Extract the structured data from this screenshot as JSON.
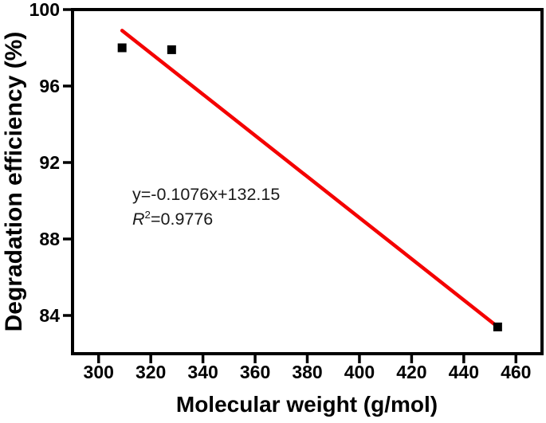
{
  "figure": {
    "background": "#ffffff"
  },
  "chart_data": {
    "type": "scatter",
    "title": "",
    "xlabel": "Molecular weight (g/mol)",
    "ylabel": "Degradation efficiency (%)",
    "xlim": [
      290,
      470
    ],
    "ylim": [
      82,
      100
    ],
    "x_ticks": [
      300,
      320,
      340,
      360,
      380,
      400,
      420,
      440,
      460
    ],
    "y_ticks": [
      84,
      88,
      92,
      96,
      100
    ],
    "grid": false,
    "legend": "none",
    "points": [
      [
        309,
        98.0
      ],
      [
        328,
        97.9
      ],
      [
        453,
        83.4
      ]
    ],
    "fit_line": {
      "slope": -0.1076,
      "intercept": 132.15,
      "x_range": [
        309,
        453
      ]
    },
    "annotation": {
      "equation": "y=-0.1076x+132.15",
      "r_base": "R",
      "r_sup": "2",
      "r_value": "=0.9776"
    },
    "colors": {
      "fit_line": "#f40000",
      "marker": "#000000",
      "axis": "#000000",
      "annotation_text": "#1a1a1a",
      "background": "#ffffff"
    }
  }
}
